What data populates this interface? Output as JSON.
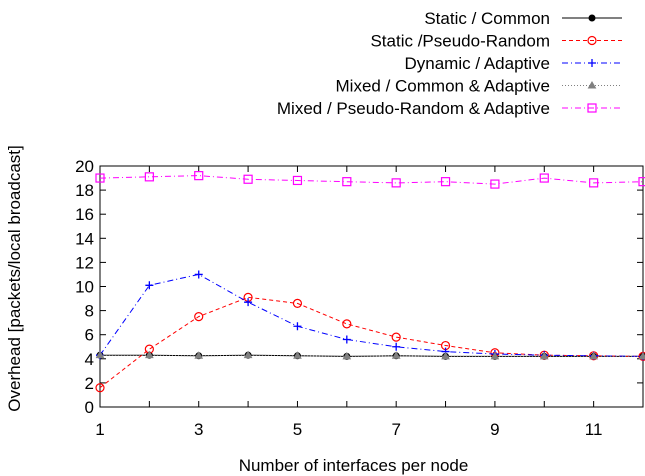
{
  "chart_data": {
    "type": "line",
    "title": "",
    "xlabel": "Number of interfaces per node",
    "ylabel": "Overhead [packets/local broadcast]",
    "xlim": [
      1,
      12
    ],
    "ylim": [
      0,
      20
    ],
    "xticks": [
      1,
      3,
      5,
      7,
      9,
      11
    ],
    "yticks": [
      0,
      2,
      4,
      6,
      8,
      10,
      12,
      14,
      16,
      18,
      20
    ],
    "grid": false,
    "legend_position": "top-right",
    "series": [
      {
        "name": "Static / Common",
        "color": "#000000",
        "line_style": "solid",
        "marker": "filled-circle",
        "x": [
          1,
          2,
          3,
          4,
          5,
          6,
          7,
          8,
          9,
          10,
          11,
          12
        ],
        "y": [
          4.3,
          4.3,
          4.25,
          4.3,
          4.25,
          4.2,
          4.25,
          4.2,
          4.2,
          4.2,
          4.2,
          4.2
        ]
      },
      {
        "name": "Static /Pseudo-Random",
        "color": "#ff0000",
        "line_style": "dashed",
        "marker": "open-circle",
        "x": [
          1,
          2,
          3,
          4,
          5,
          6,
          7,
          8,
          9,
          10,
          11,
          12
        ],
        "y": [
          1.6,
          4.8,
          7.5,
          9.1,
          8.6,
          6.9,
          5.8,
          5.1,
          4.5,
          4.3,
          4.25,
          4.2
        ]
      },
      {
        "name": "Dynamic / Adaptive",
        "color": "#0000ff",
        "line_style": "dash-dot",
        "marker": "plus",
        "x": [
          1,
          2,
          3,
          4,
          5,
          6,
          7,
          8,
          9,
          10,
          11,
          12
        ],
        "y": [
          4.3,
          10.1,
          11.0,
          8.7,
          6.7,
          5.6,
          5.0,
          4.6,
          4.4,
          4.3,
          4.25,
          4.2
        ]
      },
      {
        "name": "Mixed / Common & Adaptive",
        "color": "#808080",
        "line_style": "dotted",
        "marker": "filled-triangle",
        "x": [
          1,
          2,
          3,
          4,
          5,
          6,
          7,
          8,
          9,
          10,
          11,
          12
        ],
        "y": [
          4.3,
          4.3,
          4.25,
          4.3,
          4.25,
          4.2,
          4.25,
          4.2,
          4.2,
          4.2,
          4.2,
          4.2
        ]
      },
      {
        "name": "Mixed / Pseudo-Random & Adaptive",
        "color": "#ff00ff",
        "line_style": "dash-dot",
        "marker": "open-square",
        "x": [
          1,
          2,
          3,
          4,
          5,
          6,
          7,
          8,
          9,
          10,
          11,
          12
        ],
        "y": [
          19.0,
          19.1,
          19.2,
          18.9,
          18.8,
          18.7,
          18.6,
          18.7,
          18.5,
          19.0,
          18.6,
          18.7
        ]
      }
    ]
  }
}
